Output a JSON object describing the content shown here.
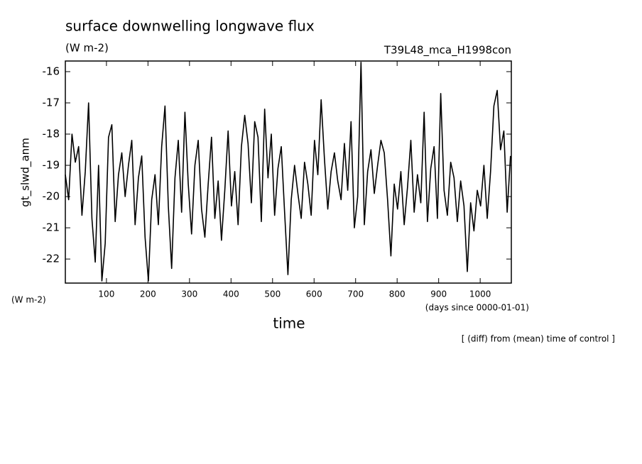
{
  "chart_data": {
    "type": "line",
    "title": "surface downwelling longwave flux",
    "subtitle": "(W m-2)",
    "annotation_right": "T39L48_mca_H1998con",
    "ylabel": "gt_slwd_anm",
    "yunit": "(W m-2)",
    "xlabel": "time",
    "xunit": "(days since 0000-01-01)",
    "footnote": "[ (diff) from (mean) time of control ]",
    "xlim": [
      1,
      1075
    ],
    "ylim": [
      -22.77,
      -15.66
    ],
    "xticks": [
      100,
      200,
      300,
      400,
      500,
      600,
      700,
      800,
      900,
      1000
    ],
    "yticks": [
      -22,
      -21,
      -20,
      -19,
      -18,
      -17,
      -16
    ],
    "series": [
      {
        "name": "gt_slwd_anm",
        "color": "#000000",
        "x": [
          1,
          9,
          17,
          25,
          33,
          41,
          49,
          57,
          65,
          73,
          81,
          89,
          97,
          105,
          113,
          121,
          129,
          137,
          145,
          153,
          161,
          169,
          177,
          185,
          193,
          201,
          209,
          217,
          225,
          233,
          241,
          249,
          257,
          265,
          273,
          281,
          289,
          297,
          305,
          313,
          321,
          329,
          337,
          345,
          353,
          361,
          369,
          377,
          385,
          393,
          401,
          409,
          417,
          425,
          433,
          441,
          449,
          457,
          465,
          473,
          481,
          489,
          497,
          505,
          513,
          521,
          529,
          537,
          545,
          553,
          561,
          569,
          577,
          585,
          593,
          601,
          609,
          617,
          625,
          633,
          641,
          649,
          657,
          665,
          673,
          681,
          689,
          697,
          705,
          713,
          721,
          729,
          737,
          745,
          753,
          761,
          769,
          777,
          785,
          793,
          801,
          809,
          817,
          825,
          833,
          841,
          849,
          857,
          865,
          873,
          881,
          889,
          897,
          905,
          913,
          921,
          929,
          937,
          945,
          953,
          961,
          969,
          977,
          985,
          993,
          1001,
          1009,
          1017,
          1025,
          1033,
          1041,
          1049,
          1057,
          1065,
          1073
        ],
        "values": [
          -19.3,
          -20.1,
          -18.0,
          -18.9,
          -18.4,
          -20.6,
          -19.2,
          -17.0,
          -20.7,
          -22.1,
          -19.0,
          -22.7,
          -21.5,
          -18.1,
          -17.7,
          -20.8,
          -19.3,
          -18.6,
          -20.0,
          -19.0,
          -18.2,
          -20.9,
          -19.4,
          -18.7,
          -21.3,
          -22.7,
          -20.1,
          -19.3,
          -20.9,
          -18.4,
          -17.1,
          -20.3,
          -22.3,
          -19.4,
          -18.2,
          -20.5,
          -17.3,
          -19.6,
          -21.2,
          -19.0,
          -18.2,
          -20.4,
          -21.3,
          -19.6,
          -18.1,
          -20.7,
          -19.5,
          -21.4,
          -19.8,
          -17.9,
          -20.3,
          -19.2,
          -20.9,
          -18.4,
          -17.4,
          -18.3,
          -20.2,
          -17.6,
          -18.1,
          -20.8,
          -17.2,
          -19.4,
          -18.0,
          -20.6,
          -19.1,
          -18.4,
          -20.5,
          -22.5,
          -20.1,
          -19.0,
          -19.9,
          -20.7,
          -18.9,
          -19.6,
          -20.6,
          -18.2,
          -19.3,
          -16.9,
          -18.8,
          -20.4,
          -19.2,
          -18.6,
          -19.5,
          -20.1,
          -18.3,
          -19.8,
          -17.6,
          -21.0,
          -20.0,
          -15.7,
          -20.9,
          -19.2,
          -18.5,
          -19.9,
          -19.0,
          -18.2,
          -18.6,
          -20.1,
          -21.9,
          -19.6,
          -20.4,
          -19.2,
          -20.9,
          -19.7,
          -18.2,
          -20.5,
          -19.3,
          -20.2,
          -17.3,
          -20.8,
          -19.1,
          -18.4,
          -20.7,
          -16.7,
          -19.8,
          -20.6,
          -18.9,
          -19.4,
          -20.8,
          -19.5,
          -20.3,
          -22.4,
          -20.2,
          -21.1,
          -19.8,
          -20.3,
          -19.0,
          -20.7,
          -19.2,
          -17.1,
          -16.6,
          -18.5,
          -17.9,
          -20.5,
          -18.7
        ]
      }
    ]
  }
}
